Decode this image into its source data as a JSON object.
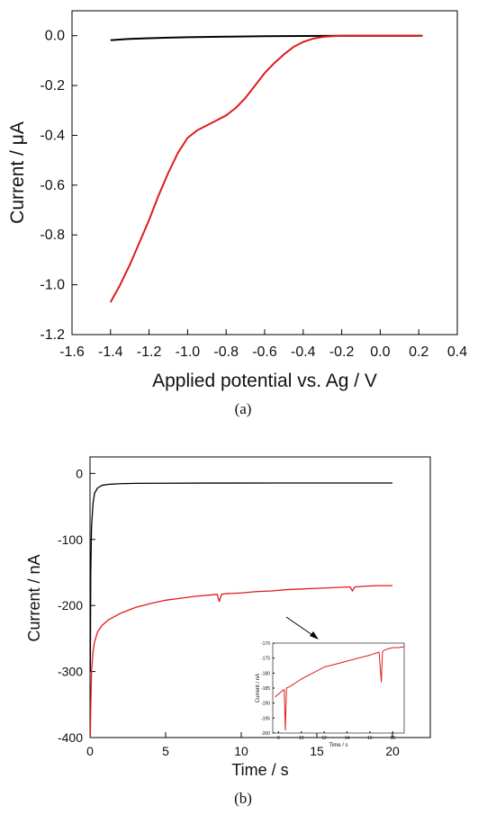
{
  "chart_data": [
    {
      "type": "line",
      "panel_label": "(a)",
      "xlabel": "Applied potential vs. Ag / V",
      "ylabel": "Current / μA",
      "xlim": [
        -1.6,
        0.4
      ],
      "ylim": [
        -1.2,
        0.1
      ],
      "xticks": [
        "-1.6",
        "-1.4",
        "-1.2",
        "-1.0",
        "-0.8",
        "-0.6",
        "-0.4",
        "-0.2",
        "0.0",
        "0.2",
        "0.4"
      ],
      "yticks": [
        "0.0",
        "-0.2",
        "-0.4",
        "-0.6",
        "-0.8",
        "-1.0",
        "-1.2"
      ],
      "grid": false,
      "series": [
        {
          "color": "#000000",
          "x": [
            -1.4,
            -1.3,
            -1.2,
            -1.1,
            -1.0,
            -0.8,
            -0.6,
            -0.4,
            -0.2,
            0.0,
            0.2,
            0.22
          ],
          "y": [
            -0.018,
            -0.013,
            -0.01,
            -0.008,
            -0.006,
            -0.004,
            -0.002,
            -0.001,
            0.0,
            0.0,
            0.0,
            0.0
          ]
        },
        {
          "color": "#e01b1b",
          "x": [
            -1.4,
            -1.35,
            -1.3,
            -1.25,
            -1.2,
            -1.15,
            -1.1,
            -1.05,
            -1.0,
            -0.95,
            -0.9,
            -0.85,
            -0.8,
            -0.75,
            -0.7,
            -0.65,
            -0.6,
            -0.55,
            -0.5,
            -0.45,
            -0.4,
            -0.35,
            -0.3,
            -0.25,
            -0.2,
            -0.1,
            0.0,
            0.1,
            0.22
          ],
          "y": [
            -1.07,
            -1.0,
            -0.92,
            -0.83,
            -0.74,
            -0.64,
            -0.55,
            -0.47,
            -0.41,
            -0.38,
            -0.36,
            -0.34,
            -0.32,
            -0.29,
            -0.25,
            -0.2,
            -0.15,
            -0.11,
            -0.075,
            -0.045,
            -0.025,
            -0.012,
            -0.005,
            -0.002,
            0.0,
            0.0,
            0.0,
            0.0,
            0.0
          ]
        }
      ]
    },
    {
      "type": "line",
      "panel_label": "(b)",
      "xlabel": "Time / s",
      "ylabel": "Current / nA",
      "xlim": [
        0,
        22.5
      ],
      "ylim": [
        -400,
        25
      ],
      "xticks": [
        "0",
        "5",
        "10",
        "15",
        "20"
      ],
      "yticks": [
        "0",
        "-100",
        "-200",
        "-300",
        "-400"
      ],
      "grid": false,
      "series": [
        {
          "color": "#000000",
          "x": [
            0.02,
            0.05,
            0.1,
            0.2,
            0.3,
            0.5,
            0.8,
            1.2,
            2,
            3,
            5,
            8,
            12,
            16,
            20
          ],
          "y": [
            -300,
            -150,
            -80,
            -45,
            -30,
            -22,
            -18,
            -16.5,
            -15.5,
            -15,
            -14.8,
            -14.6,
            -14.5,
            -14.5,
            -14.5
          ]
        },
        {
          "color": "#e01b1b",
          "x": [
            0.02,
            0.05,
            0.1,
            0.2,
            0.3,
            0.5,
            0.8,
            1.2,
            2,
            3,
            4,
            5,
            6,
            7,
            8,
            8.4,
            8.55,
            8.7,
            9,
            10,
            11,
            12,
            13,
            14,
            15,
            16,
            17,
            17.2,
            17.35,
            17.5,
            18,
            19,
            20
          ],
          "y": [
            -400,
            -350,
            -300,
            -270,
            -255,
            -240,
            -230,
            -222,
            -212,
            -203,
            -197,
            -192,
            -189,
            -186,
            -184,
            -183,
            -194,
            -183,
            -182,
            -181,
            -179,
            -178,
            -176,
            -175,
            -174,
            -173,
            -172,
            -172,
            -178,
            -172,
            -171,
            -170,
            -170
          ]
        }
      ],
      "annotation": "arrow pointing from the red curve to the inset",
      "inset": {
        "xlabel": "Time / s",
        "ylabel": "Current / nA",
        "xlim": [
          7.5,
          19
        ],
        "ylim": [
          -200,
          -170
        ],
        "xticks": [
          "8",
          "10",
          "12",
          "14",
          "16",
          "18"
        ],
        "yticks": [
          "-170",
          "-175",
          "-180",
          "-185",
          "-190",
          "-195",
          "-200"
        ],
        "series": [
          {
            "color": "#e01b1b",
            "x": [
              7.7,
              8,
              8.3,
              8.5,
              8.6,
              8.7,
              9,
              10,
              11,
              12,
              13,
              14,
              15,
              16,
              16.8,
              17.0,
              17.1,
              17.2,
              17.5,
              18,
              18.5,
              19
            ],
            "y": [
              -188,
              -187,
              -186,
              -185.5,
              -199,
              -185,
              -184.5,
              -182,
              -180,
              -178,
              -177,
              -176,
              -175,
              -174,
              -173,
              -183,
              -173,
              -172.5,
              -172,
              -171.5,
              -171.5,
              -171.2
            ]
          }
        ]
      }
    }
  ]
}
